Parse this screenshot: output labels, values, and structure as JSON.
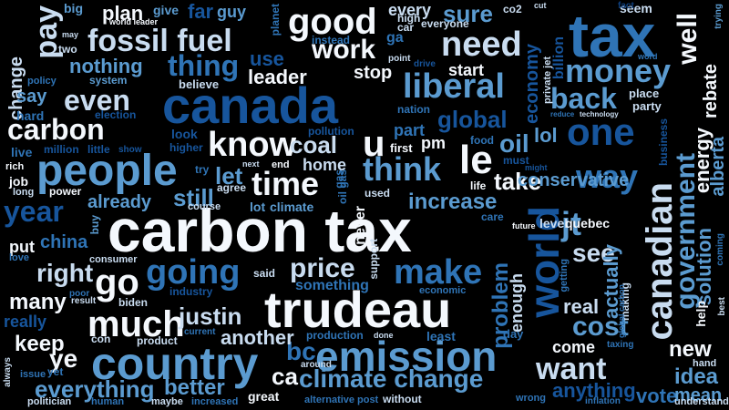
{
  "words": [
    {
      "text": "carbon tax",
      "color": "#f4f8fd"
    },
    {
      "text": "trudeau",
      "color": "#f4f8fd"
    },
    {
      "text": "canada",
      "color": "#17559c"
    },
    {
      "text": "tax",
      "color": "#2f74b6"
    },
    {
      "text": "country",
      "color": "#5b9bd0"
    },
    {
      "text": "emission",
      "color": "#5b9bd0"
    },
    {
      "text": "people",
      "color": "#5b9bd0"
    },
    {
      "text": "canadian",
      "color": "#c9dcf0"
    },
    {
      "text": "world",
      "color": "#17559c"
    },
    {
      "text": "fossil fuel",
      "color": "#c9dcf0"
    },
    {
      "text": "good",
      "color": "#f4f8fd"
    },
    {
      "text": "much",
      "color": "#f4f8fd"
    },
    {
      "text": "going",
      "color": "#2f74b6"
    },
    {
      "text": "make",
      "color": "#2f74b6"
    },
    {
      "text": "climate change",
      "color": "#5b9bd0"
    },
    {
      "text": "government",
      "color": "#5b9bd0"
    },
    {
      "text": "one",
      "color": "#17559c"
    },
    {
      "text": "know",
      "color": "#f4f8fd"
    },
    {
      "text": "need",
      "color": "#c9dcf0"
    },
    {
      "text": "think",
      "color": "#5b9bd0"
    },
    {
      "text": "money",
      "color": "#5b9bd0"
    },
    {
      "text": "liberal",
      "color": "#5b9bd0"
    },
    {
      "text": "want",
      "color": "#c9dcf0"
    },
    {
      "text": "time",
      "color": "#f4f8fd"
    },
    {
      "text": "way",
      "color": "#2f74b6"
    },
    {
      "text": "carbon",
      "color": "#f4f8fd"
    },
    {
      "text": "price",
      "color": "#c9dcf0"
    },
    {
      "text": "year",
      "color": "#17559c"
    },
    {
      "text": "even",
      "color": "#c9dcf0"
    },
    {
      "text": "go",
      "color": "#f4f8fd"
    },
    {
      "text": "pay",
      "color": "#c9dcf0"
    },
    {
      "text": "back",
      "color": "#5b9bd0"
    },
    {
      "text": "thing",
      "color": "#2f74b6"
    },
    {
      "text": "le",
      "color": "#f4f8fd"
    },
    {
      "text": "u",
      "color": "#f4f8fd"
    },
    {
      "text": "work",
      "color": "#f4f8fd"
    },
    {
      "text": "jt",
      "color": "#5b9bd0"
    },
    {
      "text": "well",
      "color": "#f4f8fd"
    },
    {
      "text": "right",
      "color": "#c9dcf0"
    },
    {
      "text": "cost",
      "color": "#5b9bd0"
    },
    {
      "text": "justin",
      "color": "#c9dcf0"
    },
    {
      "text": "global",
      "color": "#17559c"
    },
    {
      "text": "oil",
      "color": "#5b9bd0"
    },
    {
      "text": "increase",
      "color": "#5b9bd0"
    },
    {
      "text": "see",
      "color": "#c9dcf0"
    },
    {
      "text": "bc",
      "color": "#2f74b6"
    },
    {
      "text": "idea",
      "color": "#5b9bd0"
    },
    {
      "text": "new",
      "color": "#f4f8fd"
    },
    {
      "text": "still",
      "color": "#5b9bd0"
    },
    {
      "text": "coal",
      "color": "#c9dcf0"
    },
    {
      "text": "let",
      "color": "#5b9bd0"
    },
    {
      "text": "ye",
      "color": "#f4f8fd"
    },
    {
      "text": "take",
      "color": "#f4f8fd"
    },
    {
      "text": "many",
      "color": "#f4f8fd"
    },
    {
      "text": "keep",
      "color": "#f4f8fd"
    },
    {
      "text": "better",
      "color": "#5b9bd0"
    },
    {
      "text": "everything",
      "color": "#5b9bd0"
    },
    {
      "text": "ca",
      "color": "#f4f8fd"
    },
    {
      "text": "anything",
      "color": "#17559c"
    },
    {
      "text": "energy",
      "color": "#f4f8fd"
    },
    {
      "text": "solution",
      "color": "#5b9bd0"
    },
    {
      "text": "problem",
      "color": "#2f74b6"
    },
    {
      "text": "actually",
      "color": "#5b9bd0"
    },
    {
      "text": "real",
      "color": "#c9dcf0"
    },
    {
      "text": "nothing",
      "color": "#5b9bd0"
    },
    {
      "text": "another",
      "color": "#c9dcf0"
    },
    {
      "text": "leader",
      "color": "#f4f8fd"
    },
    {
      "text": "come",
      "color": "#f4f8fd"
    },
    {
      "text": "china",
      "color": "#2f74b6"
    },
    {
      "text": "conservative",
      "color": "#5b9bd0"
    },
    {
      "text": "economy",
      "color": "#17559c"
    },
    {
      "text": "already",
      "color": "#5b9bd0"
    },
    {
      "text": "lol",
      "color": "#5b9bd0"
    },
    {
      "text": "vote",
      "color": "#2f74b6"
    },
    {
      "text": "mean",
      "color": "#5b9bd0"
    },
    {
      "text": "rebate",
      "color": "#f4f8fd"
    },
    {
      "text": "alberta",
      "color": "#5b9bd0"
    },
    {
      "text": "sure",
      "color": "#5b9bd0"
    },
    {
      "text": "plan",
      "color": "#f4f8fd"
    },
    {
      "text": "far",
      "color": "#17559c"
    },
    {
      "text": "change",
      "color": "#c9dcf0"
    },
    {
      "text": "use",
      "color": "#17559c"
    },
    {
      "text": "stop",
      "color": "#f4f8fd"
    },
    {
      "text": "every",
      "color": "#c9dcf0"
    },
    {
      "text": "start",
      "color": "#f4f8fd"
    },
    {
      "text": "put",
      "color": "#f4f8fd"
    },
    {
      "text": "say",
      "color": "#5b9bd0"
    },
    {
      "text": "pm",
      "color": "#f4f8fd"
    },
    {
      "text": "part",
      "color": "#2f74b6"
    },
    {
      "text": "great",
      "color": "#f4f8fd"
    },
    {
      "text": "enough",
      "color": "#c9dcf0"
    },
    {
      "text": "gas",
      "color": "#2f74b6"
    },
    {
      "text": "something",
      "color": "#2f74b6"
    },
    {
      "text": "home",
      "color": "#c9dcf0"
    },
    {
      "text": "live",
      "color": "#2f74b6"
    },
    {
      "text": "job",
      "color": "#f4f8fd"
    },
    {
      "text": "help",
      "color": "#f4f8fd"
    },
    {
      "text": "guy",
      "color": "#5b9bd0"
    },
    {
      "text": "give",
      "color": "#5b9bd0"
    },
    {
      "text": "big",
      "color": "#5b9bd0"
    },
    {
      "text": "really",
      "color": "#17559c"
    },
    {
      "text": "future",
      "color": "#f4f8fd"
    },
    {
      "text": "level",
      "color": "#c9dcf0"
    },
    {
      "text": "quebec",
      "color": "#f4f8fd"
    },
    {
      "text": "billion",
      "color": "#17559c"
    },
    {
      "text": "seem",
      "color": "#c9dcf0"
    },
    {
      "text": "fact",
      "color": "#0e3f7e"
    },
    {
      "text": "place",
      "color": "#c9dcf0"
    },
    {
      "text": "party",
      "color": "#c9dcf0"
    },
    {
      "text": "business",
      "color": "#17559c"
    },
    {
      "text": "technology",
      "color": "#c9dcf0"
    },
    {
      "text": "reduce",
      "color": "#2f74b6"
    },
    {
      "text": "private jet",
      "color": "#c9dcf0"
    },
    {
      "text": "drive",
      "color": "#17559c"
    },
    {
      "text": "nation",
      "color": "#2f74b6"
    },
    {
      "text": "food",
      "color": "#2f74b6"
    },
    {
      "text": "must",
      "color": "#17559c"
    },
    {
      "text": "might",
      "color": "#17559c"
    },
    {
      "text": "first",
      "color": "#f4f8fd"
    },
    {
      "text": "pollution",
      "color": "#17559c"
    },
    {
      "text": "look",
      "color": "#17559c"
    },
    {
      "text": "higher",
      "color": "#17559c"
    },
    {
      "text": "show",
      "color": "#17559c"
    },
    {
      "text": "million",
      "color": "#17559c"
    },
    {
      "text": "little",
      "color": "#17559c"
    },
    {
      "text": "election",
      "color": "#17559c"
    },
    {
      "text": "hard",
      "color": "#2f74b6"
    },
    {
      "text": "policy",
      "color": "#2f74b6"
    },
    {
      "text": "system",
      "color": "#5b9bd0"
    },
    {
      "text": "believe",
      "color": "#c9dcf0"
    },
    {
      "text": "two",
      "color": "#c9dcf0"
    },
    {
      "text": "may",
      "color": "#c9dcf0"
    },
    {
      "text": "world leader",
      "color": "#f4f8fd"
    },
    {
      "text": "planet",
      "color": "#2f74b6"
    },
    {
      "text": "instead",
      "color": "#2f74b6"
    },
    {
      "text": "ga",
      "color": "#2f74b6"
    },
    {
      "text": "high",
      "color": "#c9dcf0"
    },
    {
      "text": "car",
      "color": "#c9dcf0"
    },
    {
      "text": "everyone",
      "color": "#c9dcf0"
    },
    {
      "text": "co2",
      "color": "#c9dcf0"
    },
    {
      "text": "cut",
      "color": "#c9dcf0"
    },
    {
      "text": "point",
      "color": "#c9dcf0"
    },
    {
      "text": "word",
      "color": "#2f74b6"
    },
    {
      "text": "trying",
      "color": "#5b9bd0"
    },
    {
      "text": "rich",
      "color": "#f4f8fd"
    },
    {
      "text": "long",
      "color": "#c9dcf0"
    },
    {
      "text": "power",
      "color": "#f4f8fd"
    },
    {
      "text": "next",
      "color": "#c9dcf0"
    },
    {
      "text": "end",
      "color": "#f4f8fd"
    },
    {
      "text": "agree",
      "color": "#c9dcf0"
    },
    {
      "text": "course",
      "color": "#c9dcf0"
    },
    {
      "text": "lot",
      "color": "#5b9bd0"
    },
    {
      "text": "climate",
      "color": "#5b9bd0"
    },
    {
      "text": "used",
      "color": "#c9dcf0"
    },
    {
      "text": "life",
      "color": "#f4f8fd"
    },
    {
      "text": "care",
      "color": "#2f74b6"
    },
    {
      "text": "try",
      "color": "#2f74b6"
    },
    {
      "text": "oil gas",
      "color": "#2f74b6"
    },
    {
      "text": "never",
      "color": "#f4f8fd"
    },
    {
      "text": "support",
      "color": "#c9dcf0"
    },
    {
      "text": "love",
      "color": "#2f74b6"
    },
    {
      "text": "buy",
      "color": "#5b9bd0"
    },
    {
      "text": "consumer",
      "color": "#c9dcf0"
    },
    {
      "text": "industry",
      "color": "#17559c"
    },
    {
      "text": "said",
      "color": "#c9dcf0"
    },
    {
      "text": "biden",
      "color": "#c9dcf0"
    },
    {
      "text": "result",
      "color": "#c9dcf0"
    },
    {
      "text": "poor",
      "color": "#2f74b6"
    },
    {
      "text": "con",
      "color": "#c9dcf0"
    },
    {
      "text": "product",
      "color": "#c9dcf0"
    },
    {
      "text": "current",
      "color": "#2f74b6"
    },
    {
      "text": "production",
      "color": "#2f74b6"
    },
    {
      "text": "economic",
      "color": "#2f74b6"
    },
    {
      "text": "done",
      "color": "#c9dcf0"
    },
    {
      "text": "least",
      "color": "#2f74b6"
    },
    {
      "text": "day",
      "color": "#2f74b6"
    },
    {
      "text": "getting",
      "color": "#2f74b6"
    },
    {
      "text": "making",
      "color": "#c9dcf0"
    },
    {
      "text": "global carbon",
      "color": "#2f74b6"
    },
    {
      "text": "taxing",
      "color": "#2f74b6"
    },
    {
      "text": "hand",
      "color": "#c9dcf0"
    },
    {
      "text": "best",
      "color": "#c9dcf0"
    },
    {
      "text": "coming",
      "color": "#2f74b6"
    },
    {
      "text": "around",
      "color": "#c9dcf0"
    },
    {
      "text": "always",
      "color": "#c9dcf0"
    },
    {
      "text": "issue",
      "color": "#2f74b6"
    },
    {
      "text": "yet",
      "color": "#2f74b6"
    },
    {
      "text": "politician",
      "color": "#c9dcf0"
    },
    {
      "text": "human",
      "color": "#2f74b6"
    },
    {
      "text": "maybe",
      "color": "#c9dcf0"
    },
    {
      "text": "increased",
      "color": "#2f74b6"
    },
    {
      "text": "alternative",
      "color": "#2f74b6"
    },
    {
      "text": "post",
      "color": "#2f74b6"
    },
    {
      "text": "without",
      "color": "#c9dcf0"
    },
    {
      "text": "wrong",
      "color": "#2f74b6"
    },
    {
      "text": "inflation",
      "color": "#2f74b6"
    },
    {
      "text": "understand",
      "color": "#c9dcf0"
    }
  ]
}
